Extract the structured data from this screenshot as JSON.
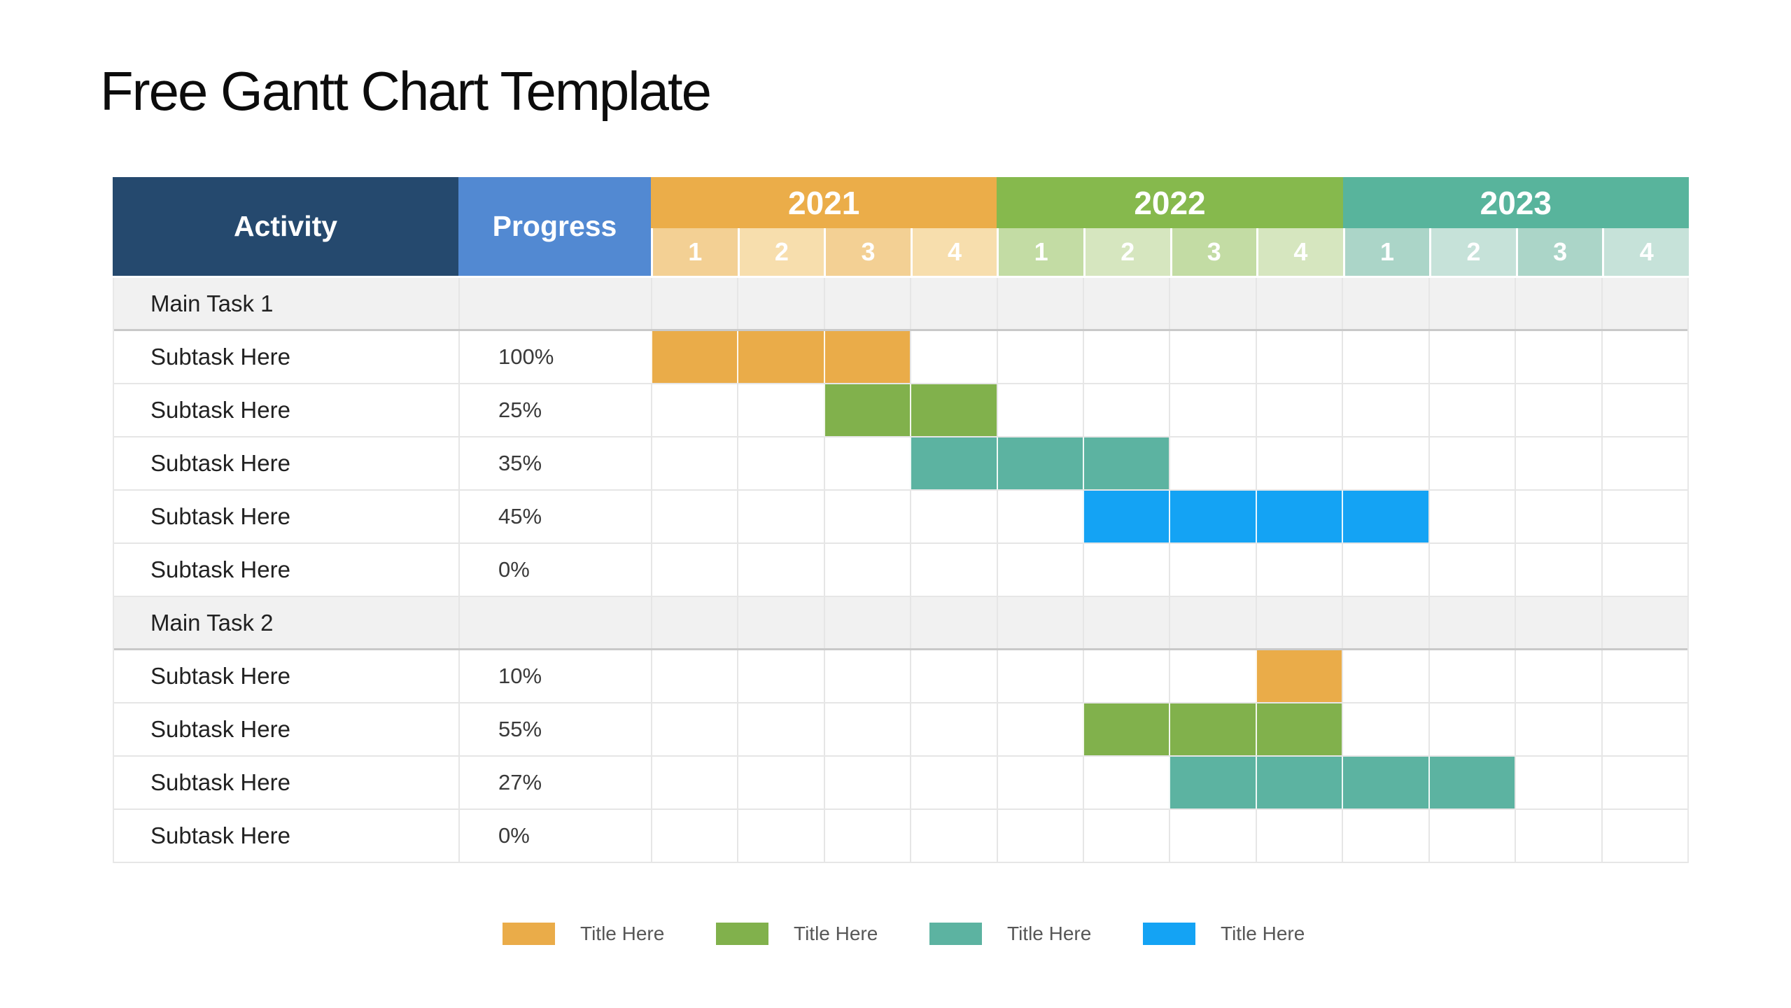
{
  "title": "Free Gantt Chart Template",
  "colors": {
    "navy": "#25496E",
    "progress_blue": "#5289D2",
    "orange_band": "#EBAD49",
    "orange_tint_a": "#F3D094",
    "orange_tint_b": "#F7DEAD",
    "green_band": "#86B94D",
    "green_tint_a": "#C3DCA4",
    "green_tint_b": "#D6E6BF",
    "teal_band": "#58B49C",
    "teal_tint_a": "#ABD5C8",
    "teal_tint_b": "#C6E2D9",
    "bar_orange": "#EAAC49",
    "bar_green": "#81B14C",
    "bar_teal": "#5CB3A1",
    "bar_blue": "#14A3F4",
    "group_row_gray": "#F1F1F1"
  },
  "table": {
    "activity_header": "Activity",
    "progress_header": "Progress",
    "years": [
      {
        "label": "2021",
        "quarters": [
          "1",
          "2",
          "3",
          "4"
        ]
      },
      {
        "label": "2022",
        "quarters": [
          "1",
          "2",
          "3",
          "4"
        ]
      },
      {
        "label": "2023",
        "quarters": [
          "1",
          "2",
          "3",
          "4"
        ]
      }
    ],
    "rows": [
      {
        "type": "group",
        "activity": "Main Task 1",
        "progress": "",
        "bar": null
      },
      {
        "type": "task",
        "activity": "Subtask Here",
        "progress": "100%",
        "bar": {
          "start": 1,
          "span": 3,
          "color": "bar_orange"
        }
      },
      {
        "type": "task",
        "activity": "Subtask Here",
        "progress": "25%",
        "bar": {
          "start": 3,
          "span": 2,
          "color": "bar_green"
        }
      },
      {
        "type": "task",
        "activity": "Subtask Here",
        "progress": "35%",
        "bar": {
          "start": 4,
          "span": 3,
          "color": "bar_teal"
        }
      },
      {
        "type": "task",
        "activity": "Subtask Here",
        "progress": "45%",
        "bar": {
          "start": 6,
          "span": 4,
          "color": "bar_blue"
        }
      },
      {
        "type": "task",
        "activity": "Subtask Here",
        "progress": "0%",
        "bar": null
      },
      {
        "type": "group",
        "activity": "Main Task 2",
        "progress": "",
        "bar": null
      },
      {
        "type": "task",
        "activity": "Subtask Here",
        "progress": "10%",
        "bar": {
          "start": 8,
          "span": 1,
          "color": "bar_orange"
        }
      },
      {
        "type": "task",
        "activity": "Subtask Here",
        "progress": "55%",
        "bar": {
          "start": 6,
          "span": 3,
          "color": "bar_green"
        }
      },
      {
        "type": "task",
        "activity": "Subtask Here",
        "progress": "27%",
        "bar": {
          "start": 7,
          "span": 4,
          "color": "bar_teal"
        }
      },
      {
        "type": "task",
        "activity": "Subtask Here",
        "progress": "0%",
        "bar": null
      }
    ]
  },
  "legend": [
    {
      "label": "Title Here",
      "color": "bar_orange"
    },
    {
      "label": "Title Here",
      "color": "bar_green"
    },
    {
      "label": "Title Here",
      "color": "bar_teal"
    },
    {
      "label": "Title Here",
      "color": "bar_blue"
    }
  ],
  "chart_data": {
    "type": "gantt",
    "title": "Free Gantt Chart Template",
    "time_axis": {
      "years": [
        "2021",
        "2022",
        "2023"
      ],
      "unit": "quarter",
      "quarters_per_year": 4,
      "total_quarters": 12
    },
    "groups": [
      {
        "name": "Main Task 1",
        "tasks": [
          {
            "name": "Subtask Here",
            "progress_pct": 100,
            "start_quarter": "2021 Q1",
            "end_quarter": "2021 Q3",
            "color": "#EAAC49"
          },
          {
            "name": "Subtask Here",
            "progress_pct": 25,
            "start_quarter": "2021 Q3",
            "end_quarter": "2021 Q4",
            "color": "#81B14C"
          },
          {
            "name": "Subtask Here",
            "progress_pct": 35,
            "start_quarter": "2021 Q4",
            "end_quarter": "2022 Q2",
            "color": "#5CB3A1"
          },
          {
            "name": "Subtask Here",
            "progress_pct": 45,
            "start_quarter": "2022 Q2",
            "end_quarter": "2023 Q1",
            "color": "#14A3F4"
          },
          {
            "name": "Subtask Here",
            "progress_pct": 0,
            "start_quarter": null,
            "end_quarter": null,
            "color": null
          }
        ]
      },
      {
        "name": "Main Task 2",
        "tasks": [
          {
            "name": "Subtask Here",
            "progress_pct": 10,
            "start_quarter": "2022 Q4",
            "end_quarter": "2022 Q4",
            "color": "#EAAC49"
          },
          {
            "name": "Subtask Here",
            "progress_pct": 55,
            "start_quarter": "2022 Q2",
            "end_quarter": "2022 Q4",
            "color": "#81B14C"
          },
          {
            "name": "Subtask Here",
            "progress_pct": 27,
            "start_quarter": "2022 Q3",
            "end_quarter": "2023 Q2",
            "color": "#5CB3A1"
          },
          {
            "name": "Subtask Here",
            "progress_pct": 0,
            "start_quarter": null,
            "end_quarter": null,
            "color": null
          }
        ]
      }
    ],
    "legend_entries": [
      "Title Here",
      "Title Here",
      "Title Here",
      "Title Here"
    ],
    "legend_position": "bottom"
  }
}
